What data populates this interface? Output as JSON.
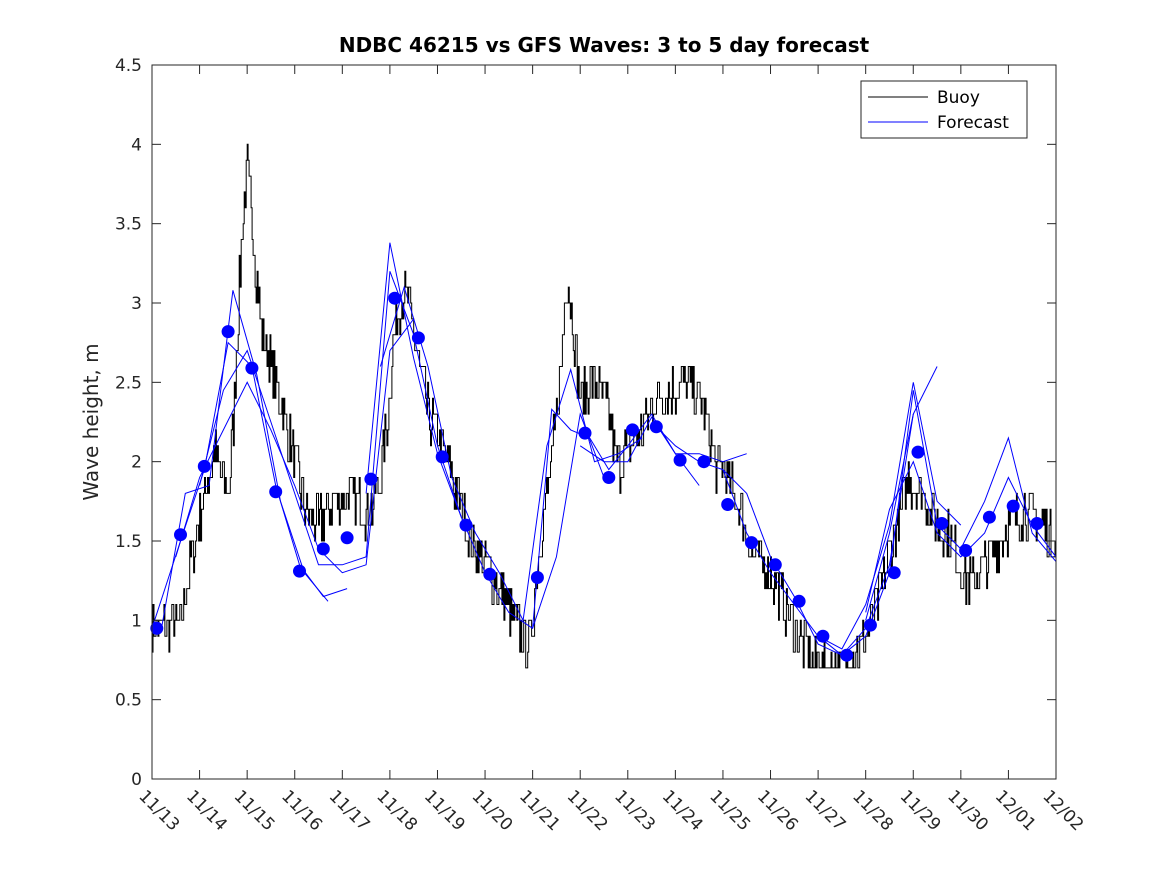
{
  "chart_data": {
    "type": "line",
    "title": "NDBC 46215 vs GFS Waves: 3 to 5 day forecast",
    "xlabel": "",
    "ylabel": "Wave height, m",
    "xlim": [
      0,
      19
    ],
    "ylim": [
      0,
      4.5
    ],
    "y_ticks": [
      0,
      0.5,
      1,
      1.5,
      2,
      2.5,
      3,
      3.5,
      4,
      4.5
    ],
    "y_tick_labels": [
      "0",
      "0.5",
      "1",
      "1.5",
      "2",
      "2.5",
      "3",
      "3.5",
      "4",
      "4.5"
    ],
    "x_ticks": [
      0,
      1,
      2,
      3,
      4,
      5,
      6,
      7,
      8,
      9,
      10,
      11,
      12,
      13,
      14,
      15,
      16,
      17,
      18,
      19
    ],
    "x_tick_labels": [
      "11/13",
      "11/14",
      "11/15",
      "11/16",
      "11/17",
      "11/18",
      "11/19",
      "11/20",
      "11/21",
      "11/22",
      "11/23",
      "11/24",
      "11/25",
      "11/26",
      "11/27",
      "11/28",
      "11/29",
      "11/30",
      "12/01",
      "12/02"
    ],
    "legend": {
      "position": "top-right",
      "entries": [
        "Buoy",
        "Forecast"
      ]
    },
    "colors": {
      "buoy": "#000000",
      "forecast": "#0000ff",
      "axes": "#262626"
    },
    "buoy_key": {
      "x": [
        0,
        0.3,
        0.6,
        0.9,
        1.1,
        1.3,
        1.6,
        1.7,
        1.8,
        1.9,
        2.0,
        2.1,
        2.3,
        2.6,
        3.0,
        3.2,
        3.5,
        3.8,
        4.2,
        4.4,
        4.6,
        4.8,
        4.95,
        5.1,
        5.3,
        5.5,
        5.8,
        6.1,
        6.4,
        6.7,
        7.0,
        7.3,
        7.6,
        7.8,
        7.95,
        8.05,
        8.2,
        8.4,
        8.6,
        8.7,
        8.8,
        9.0,
        9.3,
        9.6,
        9.8,
        10.0,
        10.3,
        10.6,
        11.0,
        11.3,
        11.6,
        11.8,
        12.0,
        12.3,
        12.6,
        13.0,
        13.3,
        13.6,
        13.9,
        14.2,
        14.5,
        14.8,
        15.1,
        15.4,
        15.7,
        15.9,
        16.2,
        16.5,
        16.8,
        17.1,
        17.4,
        17.7,
        18.0,
        18.3,
        18.6,
        19.0
      ],
      "y": [
        0.95,
        0.95,
        1.0,
        1.5,
        1.8,
        2.05,
        1.8,
        2.2,
        2.9,
        3.5,
        3.85,
        3.5,
        2.8,
        2.5,
        2.0,
        1.7,
        1.6,
        1.75,
        1.8,
        1.7,
        1.7,
        1.9,
        2.3,
        2.85,
        3.1,
        2.8,
        2.3,
        2.1,
        1.8,
        1.5,
        1.35,
        1.2,
        1.0,
        0.9,
        0.85,
        1.2,
        1.6,
        2.0,
        2.6,
        3.2,
        3.0,
        2.4,
        2.5,
        2.3,
        1.95,
        2.1,
        2.2,
        2.4,
        2.45,
        2.5,
        2.35,
        2.0,
        1.95,
        1.75,
        1.45,
        1.3,
        1.1,
        0.9,
        0.75,
        0.7,
        0.72,
        0.8,
        0.95,
        1.3,
        1.65,
        1.9,
        1.8,
        1.6,
        1.5,
        1.25,
        1.3,
        1.45,
        1.6,
        1.7,
        1.65,
        1.5
      ]
    },
    "forecast_points": {
      "x": [
        0.1,
        0.6,
        1.1,
        1.6,
        2.1,
        2.6,
        3.1,
        3.6,
        4.1,
        4.6,
        5.1,
        5.6,
        6.1,
        6.6,
        7.1,
        8.1,
        9.1,
        9.6,
        10.1,
        10.6,
        11.1,
        11.6,
        12.1,
        12.6,
        13.1,
        13.6,
        14.1,
        14.6,
        15.1,
        15.6,
        16.1,
        16.6,
        17.1,
        17.6,
        18.1,
        18.6
      ],
      "y": [
        0.95,
        1.54,
        1.97,
        2.82,
        2.59,
        1.81,
        1.31,
        1.45,
        1.52,
        1.89,
        3.03,
        2.78,
        2.03,
        1.6,
        1.29,
        1.27,
        2.18,
        1.9,
        2.2,
        2.22,
        2.01,
        2.0,
        1.73,
        1.49,
        1.35,
        1.12,
        0.9,
        0.78,
        0.97,
        1.3,
        2.06,
        1.61,
        1.44,
        1.65,
        1.72,
        1.61
      ]
    },
    "forecast_runs": [
      {
        "x": [
          0,
          0.6,
          1.1,
          1.6,
          2.1,
          2.6,
          3.1,
          3.6,
          4.1
        ],
        "y": [
          0.95,
          1.5,
          1.95,
          2.75,
          2.6,
          1.85,
          1.35,
          1.15,
          1.2
        ]
      },
      {
        "x": [
          0.2,
          0.7,
          1.2,
          1.7,
          2.2,
          2.7,
          3.2,
          3.7
        ],
        "y": [
          0.95,
          1.8,
          1.85,
          3.08,
          2.55,
          1.75,
          1.3,
          1.12
        ]
      },
      {
        "x": [
          0.5,
          1.0,
          1.5,
          2.0,
          2.5,
          3.0,
          3.5,
          4.0,
          4.5,
          5.0,
          5.5
        ],
        "y": [
          1.4,
          1.9,
          2.2,
          2.5,
          2.2,
          1.85,
          1.45,
          1.3,
          1.35,
          2.7,
          2.9
        ]
      },
      {
        "x": [
          1.0,
          1.5,
          2.0,
          2.5,
          3.0,
          3.5,
          4.0,
          4.5,
          5.0,
          5.5,
          6.0,
          6.5
        ],
        "y": [
          1.85,
          2.45,
          2.7,
          2.25,
          1.8,
          1.35,
          1.35,
          1.4,
          3.2,
          2.8,
          2.1,
          1.65
        ]
      },
      {
        "x": [
          4.5,
          5.0,
          5.5,
          6.0,
          6.5,
          7.0,
          7.5,
          8.0,
          8.5,
          9.0,
          9.5
        ],
        "y": [
          1.8,
          3.38,
          2.65,
          2.05,
          1.65,
          1.3,
          1.05,
          0.95,
          1.4,
          2.3,
          1.9
        ]
      },
      {
        "x": [
          4.8,
          5.3,
          5.8,
          6.3,
          6.8,
          7.3,
          7.8,
          8.3,
          8.8,
          9.3,
          9.8,
          10.3
        ],
        "y": [
          2.6,
          3.1,
          2.6,
          1.9,
          1.55,
          1.3,
          1.0,
          2.1,
          2.58,
          2.0,
          2.05,
          2.15
        ]
      },
      {
        "x": [
          8.0,
          8.4,
          8.8,
          9.2,
          9.6,
          10.0,
          10.5,
          11.0,
          11.5
        ],
        "y": [
          0.95,
          2.33,
          2.2,
          2.15,
          1.95,
          2.1,
          2.3,
          2.05,
          1.85
        ]
      },
      {
        "x": [
          9.0,
          9.5,
          10.0,
          10.5,
          11.0,
          11.5,
          12.0,
          12.5
        ],
        "y": [
          2.1,
          2.0,
          2.0,
          2.28,
          2.05,
          2.05,
          2.0,
          2.05
        ]
      },
      {
        "x": [
          10.5,
          11.0,
          11.5,
          12.0,
          12.5,
          13.0,
          13.5,
          14.0,
          14.5,
          15.0,
          15.5,
          16.0
        ],
        "y": [
          2.25,
          2.1,
          2.0,
          1.95,
          1.8,
          1.4,
          1.15,
          0.85,
          0.78,
          0.95,
          1.35,
          2.3
        ]
      },
      {
        "x": [
          12.0,
          12.5,
          13.0,
          13.5,
          14.0,
          14.5,
          15.0,
          15.5,
          16.0,
          16.5,
          17.0
        ],
        "y": [
          1.95,
          1.55,
          1.3,
          1.1,
          0.9,
          0.82,
          1.1,
          1.6,
          2.5,
          1.75,
          1.6
        ]
      },
      {
        "x": [
          14.0,
          14.5,
          15.0,
          15.5,
          16.0,
          16.5,
          17.0,
          17.5,
          18.0,
          18.5,
          19.0
        ],
        "y": [
          0.9,
          0.78,
          0.9,
          1.3,
          2.45,
          1.6,
          1.45,
          1.75,
          2.15,
          1.55,
          1.37
        ]
      },
      {
        "x": [
          15.0,
          15.5,
          16.0,
          16.5,
          17.0,
          17.5,
          18.0,
          18.5,
          19.0
        ],
        "y": [
          1.05,
          1.7,
          2.0,
          1.55,
          1.4,
          1.55,
          1.9,
          1.6,
          1.4
        ]
      },
      {
        "x": [
          15.0,
          15.5,
          16.0,
          16.5
        ],
        "y": [
          1.0,
          1.55,
          2.3,
          2.6
        ]
      }
    ]
  }
}
